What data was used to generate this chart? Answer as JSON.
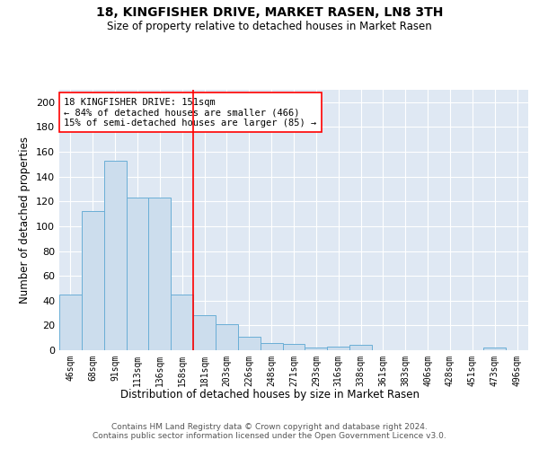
{
  "title": "18, KINGFISHER DRIVE, MARKET RASEN, LN8 3TH",
  "subtitle": "Size of property relative to detached houses in Market Rasen",
  "xlabel": "Distribution of detached houses by size in Market Rasen",
  "ylabel": "Number of detached properties",
  "categories": [
    "46sqm",
    "68sqm",
    "91sqm",
    "113sqm",
    "136sqm",
    "158sqm",
    "181sqm",
    "203sqm",
    "226sqm",
    "248sqm",
    "271sqm",
    "293sqm",
    "316sqm",
    "338sqm",
    "361sqm",
    "383sqm",
    "406sqm",
    "428sqm",
    "451sqm",
    "473sqm",
    "496sqm"
  ],
  "values": [
    45,
    112,
    153,
    123,
    123,
    45,
    28,
    21,
    11,
    6,
    5,
    2,
    3,
    4,
    0,
    0,
    0,
    0,
    0,
    2,
    0
  ],
  "bar_color": "#ccdded",
  "bar_edge_color": "#6aaed6",
  "vline_x": 5.5,
  "vline_color": "red",
  "annotation_lines": [
    "18 KINGFISHER DRIVE: 151sqm",
    "← 84% of detached houses are smaller (466)",
    "15% of semi-detached houses are larger (85) →"
  ],
  "ylim": [
    0,
    210
  ],
  "yticks": [
    0,
    20,
    40,
    60,
    80,
    100,
    120,
    140,
    160,
    180,
    200
  ],
  "background_color": "#dfe8f3",
  "grid_color": "#ffffff",
  "footer_line1": "Contains HM Land Registry data © Crown copyright and database right 2024.",
  "footer_line2": "Contains public sector information licensed under the Open Government Licence v3.0."
}
